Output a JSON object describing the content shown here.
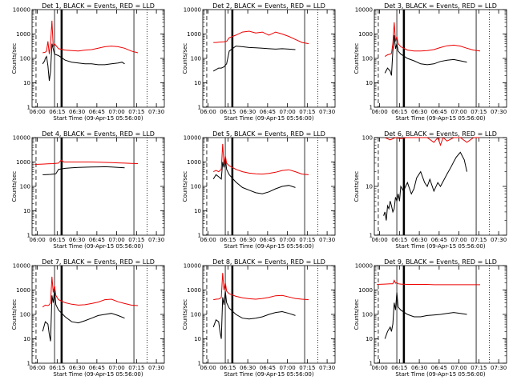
{
  "chart_data": [
    {
      "type": "line",
      "panel": "det-1",
      "title": "Det 1, BLACK = Events, RED = LLD",
      "xlabel": "Start Time (09-Apr-15 05:56:00)",
      "ylabel": "Counts/sec",
      "yscale": "log",
      "ylim": [
        1,
        10000
      ],
      "xtick_labels": [
        "06:00",
        "06:15",
        "06:30",
        "06:45",
        "07:00",
        "07:15",
        "07:30"
      ],
      "ytick_labels": [
        "1",
        "10",
        "100",
        "1000",
        "10000"
      ],
      "series": [
        {
          "color": "black",
          "x": [
            6,
            7.5,
            8,
            9.5,
            10,
            11,
            12,
            13,
            14,
            15,
            17,
            20,
            25,
            30,
            35,
            40,
            45,
            50,
            55,
            60,
            65,
            68,
            70
          ],
          "y": [
            null,
            null,
            60,
            80,
            100,
            120,
            50,
            12,
            30,
            400,
            150,
            130,
            85,
            70,
            65,
            60,
            60,
            55,
            55,
            60,
            65,
            70,
            60
          ]
        },
        {
          "color": "red",
          "x": [
            6,
            8,
            10,
            11,
            12,
            13,
            14,
            15,
            16,
            17,
            20,
            25,
            30,
            35,
            40,
            45,
            50,
            55,
            60,
            65,
            70,
            75,
            80
          ],
          "y": [
            null,
            170,
            180,
            200,
            500,
            150,
            400,
            3500,
            300,
            400,
            250,
            220,
            210,
            200,
            220,
            230,
            260,
            300,
            320,
            300,
            260,
            200,
            170
          ]
        }
      ]
    },
    {
      "type": "line",
      "panel": "det-2",
      "title": "Det 2, BLACK = Events, RED = LLD",
      "xlabel": "Start Time (09-Apr-15 05:56:00)",
      "ylabel": "Counts/sec",
      "yscale": "log",
      "ylim": [
        1,
        10000
      ],
      "xtick_labels": [
        "06:00",
        "06:15",
        "06:30",
        "06:45",
        "07:00",
        "07:15",
        "07:30"
      ],
      "ytick_labels": [
        "1",
        "10",
        "100",
        "1000",
        "10000"
      ],
      "series": [
        {
          "color": "black",
          "x": [
            8,
            10,
            12,
            14,
            16,
            18,
            20,
            25,
            30,
            35,
            40,
            45,
            50,
            55,
            60,
            65,
            70
          ],
          "y": [
            30,
            35,
            40,
            40,
            45,
            60,
            200,
            320,
            300,
            280,
            270,
            260,
            250,
            240,
            250,
            240,
            230
          ]
        },
        {
          "color": "red",
          "x": [
            8,
            10,
            12,
            14,
            16,
            18,
            20,
            25,
            30,
            35,
            40,
            45,
            50,
            55,
            60,
            65,
            70,
            75,
            80
          ],
          "y": [
            450,
            450,
            460,
            470,
            480,
            500,
            700,
            900,
            1200,
            1300,
            1100,
            1200,
            900,
            1200,
            1000,
            800,
            600,
            450,
            400
          ]
        }
      ]
    },
    {
      "type": "line",
      "panel": "det-3",
      "title": "Det 3, BLACK = Events, RED = LLD",
      "xlabel": "Start Time (09-Apr-15 05:56:00)",
      "ylabel": "Counts/sec",
      "yscale": "log",
      "ylim": [
        1,
        10000
      ],
      "xtick_labels": [
        "06:00",
        "06:15",
        "06:30",
        "06:45",
        "07:00",
        "07:15",
        "07:30"
      ],
      "ytick_labels": [
        "1",
        "10",
        "100",
        "1000",
        "10000"
      ],
      "series": [
        {
          "color": "black",
          "x": [
            8,
            10,
            12,
            13,
            14,
            15,
            16,
            17,
            18,
            20,
            25,
            30,
            35,
            40,
            45,
            50,
            55,
            60,
            65,
            70
          ],
          "y": [
            25,
            40,
            30,
            20,
            200,
            900,
            250,
            400,
            200,
            150,
            100,
            80,
            60,
            55,
            60,
            75,
            85,
            90,
            80,
            70
          ]
        },
        {
          "color": "red",
          "x": [
            8,
            10,
            12,
            13,
            14,
            15,
            16,
            17,
            18,
            20,
            25,
            30,
            35,
            40,
            45,
            50,
            55,
            60,
            65,
            70,
            75,
            80
          ],
          "y": [
            120,
            140,
            150,
            160,
            400,
            3000,
            500,
            800,
            400,
            300,
            220,
            200,
            200,
            210,
            230,
            280,
            330,
            350,
            320,
            260,
            220,
            200
          ]
        }
      ]
    },
    {
      "type": "line",
      "panel": "det-4",
      "title": "Det 4, BLACK = Events, RED = LLD",
      "xlabel": "Start Time (09-Apr-15 05:56:00)",
      "ylabel": "Counts/sec",
      "yscale": "log",
      "ylim": [
        1,
        10000
      ],
      "xtick_labels": [
        "06:00",
        "06:15",
        "06:30",
        "06:45",
        "07:00",
        "07:15",
        "07:30"
      ],
      "ytick_labels": [
        "1",
        "10",
        "100",
        "1000",
        "10000"
      ],
      "series": [
        {
          "color": "black",
          "x": [
            8,
            10,
            14,
            16,
            18,
            20,
            25,
            30,
            35,
            40,
            45,
            50,
            55,
            60,
            65,
            70
          ],
          "y": [
            300,
            300,
            310,
            320,
            330,
            500,
            550,
            580,
            600,
            610,
            620,
            630,
            640,
            620,
            600,
            580
          ]
        },
        {
          "color": "red",
          "x": [
            2,
            8,
            12,
            16,
            20,
            22,
            24,
            30,
            35,
            40,
            45,
            50,
            55,
            60,
            65,
            70,
            75,
            80
          ],
          "y": [
            800,
            820,
            840,
            860,
            900,
            1200,
            1000,
            1000,
            1000,
            1000,
            1000,
            980,
            960,
            940,
            920,
            900,
            880,
            860
          ]
        }
      ]
    },
    {
      "type": "line",
      "panel": "det-5",
      "title": "Det 5, BLACK = Events, RED = LLD",
      "xlabel": "Start Time (09-Apr-15 05:56:00)",
      "ylabel": "Counts/sec",
      "yscale": "log",
      "ylim": [
        1,
        10000
      ],
      "xtick_labels": [
        "06:00",
        "06:15",
        "06:30",
        "06:45",
        "07:00",
        "07:15",
        "07:30"
      ],
      "ytick_labels": [
        "1",
        "10",
        "100",
        "1000",
        "10000"
      ],
      "series": [
        {
          "color": "black",
          "x": [
            8,
            10,
            12,
            14,
            15,
            16,
            17,
            18,
            20,
            25,
            30,
            35,
            40,
            45,
            50,
            55,
            60,
            65,
            70
          ],
          "y": [
            200,
            300,
            250,
            200,
            1000,
            600,
            1500,
            500,
            300,
            150,
            90,
            70,
            55,
            50,
            60,
            80,
            100,
            110,
            90
          ]
        },
        {
          "color": "red",
          "x": [
            8,
            10,
            12,
            14,
            15,
            16,
            17,
            18,
            20,
            25,
            30,
            35,
            40,
            45,
            50,
            55,
            60,
            65,
            70,
            75,
            80
          ],
          "y": [
            400,
            450,
            400,
            500,
            5500,
            800,
            1800,
            900,
            700,
            500,
            400,
            350,
            330,
            320,
            340,
            380,
            450,
            480,
            400,
            320,
            300
          ]
        }
      ]
    },
    {
      "type": "line",
      "panel": "det-6",
      "title": "Det 6, BLACK = Events, RED = LLD",
      "xlabel": "Start Time (09-Apr-15 05:56:00)",
      "ylabel": "Counts/sec",
      "yscale": "log",
      "ylim": [
        1,
        100
      ],
      "xtick_labels": [
        "06:00",
        "06:15",
        "06:30",
        "06:45",
        "07:00",
        "07:15",
        "07:30"
      ],
      "ytick_labels": [
        "1",
        "10",
        "100"
      ],
      "series": [
        {
          "color": "black",
          "x": [
            7,
            8,
            9,
            10,
            11,
            12,
            13,
            14,
            15,
            16,
            17,
            18,
            19,
            20,
            22,
            25,
            28,
            30,
            32,
            35,
            38,
            40,
            42,
            45,
            48,
            50,
            55,
            58,
            60,
            62,
            65,
            68,
            70
          ],
          "y": [
            2.5,
            3,
            2,
            4,
            3.5,
            5,
            4,
            3,
            3.5,
            6,
            5,
            7,
            5,
            10,
            8,
            12,
            7,
            9,
            15,
            20,
            12,
            10,
            14,
            8,
            12,
            10,
            18,
            25,
            32,
            40,
            50,
            35,
            20
          ]
        },
        {
          "color": "red",
          "x": [
            8,
            12,
            16,
            20,
            24,
            30,
            40,
            45,
            48,
            50,
            52,
            55,
            60,
            65,
            70,
            75,
            80
          ],
          "y": [
            100,
            90,
            100,
            95,
            100,
            100,
            100,
            80,
            100,
            70,
            100,
            85,
            100,
            100,
            80,
            100,
            100
          ]
        }
      ]
    },
    {
      "type": "line",
      "panel": "det-7",
      "title": "Det 7, BLACK = Events, RED = LLD",
      "xlabel": "Start Time (09-Apr-15 05:56:00)",
      "ylabel": "Counts/sec",
      "yscale": "log",
      "ylim": [
        1,
        10000
      ],
      "xtick_labels": [
        "06:00",
        "06:15",
        "06:30",
        "06:45",
        "07:00",
        "07:15",
        "07:30"
      ],
      "ytick_labels": [
        "1",
        "10",
        "100",
        "1000",
        "10000"
      ],
      "series": [
        {
          "color": "black",
          "x": [
            8,
            10,
            12,
            13,
            14,
            15,
            16,
            17,
            18,
            20,
            25,
            30,
            35,
            40,
            45,
            50,
            55,
            60,
            65,
            70
          ],
          "y": [
            20,
            50,
            40,
            15,
            8,
            600,
            300,
            1000,
            250,
            150,
            80,
            50,
            45,
            55,
            70,
            90,
            100,
            110,
            90,
            70
          ]
        },
        {
          "color": "red",
          "x": [
            8,
            10,
            12,
            13,
            14,
            15,
            16,
            17,
            18,
            20,
            25,
            30,
            35,
            40,
            45,
            50,
            55,
            60,
            65,
            70,
            75,
            80
          ],
          "y": [
            200,
            240,
            230,
            250,
            300,
            3500,
            800,
            1500,
            600,
            400,
            300,
            260,
            240,
            250,
            280,
            320,
            400,
            420,
            330,
            280,
            240,
            230
          ]
        }
      ]
    },
    {
      "type": "line",
      "panel": "det-8",
      "title": "Det 8, BLACK = Events, RED = LLD",
      "xlabel": "Start Time (09-Apr-15 05:56:00)",
      "ylabel": "Counts/sec",
      "yscale": "log",
      "ylim": [
        1,
        10000
      ],
      "xtick_labels": [
        "06:00",
        "06:15",
        "06:30",
        "06:45",
        "07:00",
        "07:15",
        "07:30"
      ],
      "ytick_labels": [
        "1",
        "10",
        "100",
        "1000",
        "10000"
      ],
      "series": [
        {
          "color": "black",
          "x": [
            8,
            10,
            12,
            13,
            14,
            15,
            16,
            17,
            18,
            20,
            25,
            30,
            35,
            40,
            45,
            50,
            55,
            60,
            65,
            70
          ],
          "y": [
            30,
            60,
            50,
            20,
            10,
            500,
            250,
            900,
            300,
            180,
            100,
            70,
            65,
            70,
            80,
            100,
            120,
            130,
            110,
            90
          ]
        },
        {
          "color": "red",
          "x": [
            8,
            10,
            12,
            13,
            14,
            15,
            16,
            17,
            18,
            20,
            25,
            30,
            35,
            40,
            45,
            50,
            55,
            60,
            65,
            70,
            75,
            80
          ],
          "y": [
            400,
            420,
            430,
            450,
            500,
            5000,
            1000,
            2000,
            900,
            700,
            550,
            480,
            440,
            420,
            450,
            500,
            580,
            600,
            520,
            450,
            420,
            400
          ]
        }
      ]
    },
    {
      "type": "line",
      "panel": "det-9",
      "title": "Det 9, BLACK = Events, RED = LLD",
      "xlabel": "Start Time (09-Apr-15 05:56:00)",
      "ylabel": "Counts/sec",
      "yscale": "log",
      "ylim": [
        1,
        10000
      ],
      "xtick_labels": [
        "06:00",
        "06:15",
        "06:30",
        "06:45",
        "07:00",
        "07:15",
        "07:30"
      ],
      "ytick_labels": [
        "1",
        "10",
        "100",
        "1000",
        "10000"
      ],
      "series": [
        {
          "color": "black",
          "x": [
            8,
            10,
            12,
            13,
            14,
            15,
            16,
            17,
            18,
            20,
            25,
            30,
            35,
            40,
            45,
            50,
            55,
            60,
            65,
            70
          ],
          "y": [
            10,
            20,
            30,
            20,
            40,
            300,
            150,
            800,
            200,
            150,
            100,
            80,
            80,
            90,
            95,
            100,
            110,
            120,
            110,
            100
          ]
        },
        {
          "color": "red",
          "x": [
            2,
            8,
            12,
            14,
            15,
            16,
            17,
            18,
            20,
            25,
            30,
            35,
            40,
            45,
            50,
            55,
            60,
            65,
            70,
            75,
            80
          ],
          "y": [
            1700,
            1750,
            1800,
            1800,
            2500,
            1900,
            2000,
            1800,
            1750,
            1700,
            1700,
            1700,
            1700,
            1650,
            1650,
            1650,
            1650,
            1650,
            1650,
            1650,
            1650
          ]
        }
      ]
    }
  ]
}
